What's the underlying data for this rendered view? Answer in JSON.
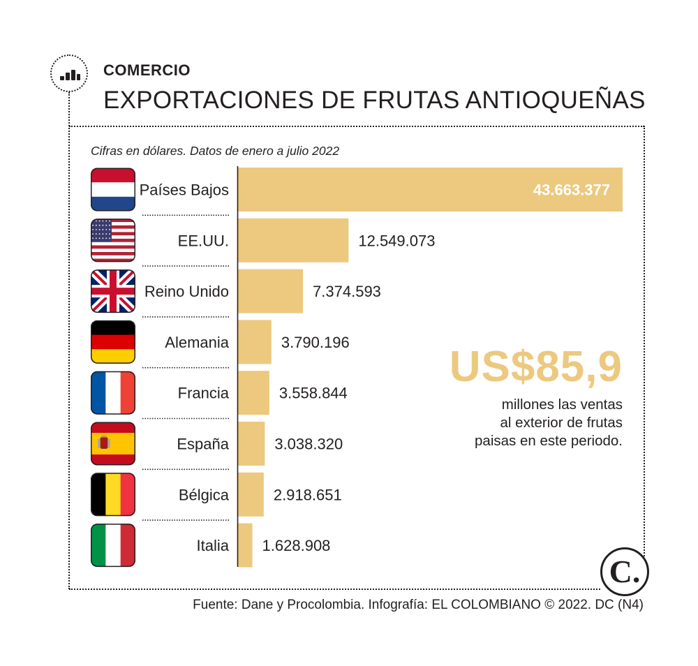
{
  "header": {
    "section": "COMERCIO",
    "title": "EXPORTACIONES DE FRUTAS ANTIOQUEÑAS",
    "icon": "bar-chart-icon"
  },
  "subtitle": "Cifras en dólares. Datos de enero a julio 2022",
  "chart_data": {
    "type": "bar",
    "orientation": "horizontal",
    "categories": [
      "Países Bajos",
      "EE.UU.",
      "Reino Unido",
      "Alemania",
      "Francia",
      "España",
      "Bélgica",
      "Italia"
    ],
    "values": [
      43663377,
      12549073,
      7374593,
      3790196,
      3558844,
      3038320,
      2918651,
      1628908
    ],
    "value_labels": [
      "43.663.377",
      "12.549.073",
      "7.374.593",
      "3.790.196",
      "3.558.844",
      "3.038.320",
      "2.918.651",
      "1.628.908"
    ],
    "flags": [
      "netherlands-flag-icon",
      "usa-flag-icon",
      "uk-flag-icon",
      "germany-flag-icon",
      "france-flag-icon",
      "spain-flag-icon",
      "belgium-flag-icon",
      "italy-flag-icon"
    ],
    "xlim": [
      0,
      43663377
    ],
    "bar_color": "#ecc97f",
    "grid": false,
    "legend": "none"
  },
  "highlight": {
    "value": "US$85,9",
    "note_lines": [
      "millones las ventas",
      "al exterior de frutas",
      "paisas en este periodo."
    ]
  },
  "logo_text": "C.",
  "source": "Fuente: Dane y Procolombia. Infografía: EL COLOMBIANO © 2022. DC (N4)",
  "colors": {
    "accent": "#ecc97f",
    "text": "#231f20"
  }
}
